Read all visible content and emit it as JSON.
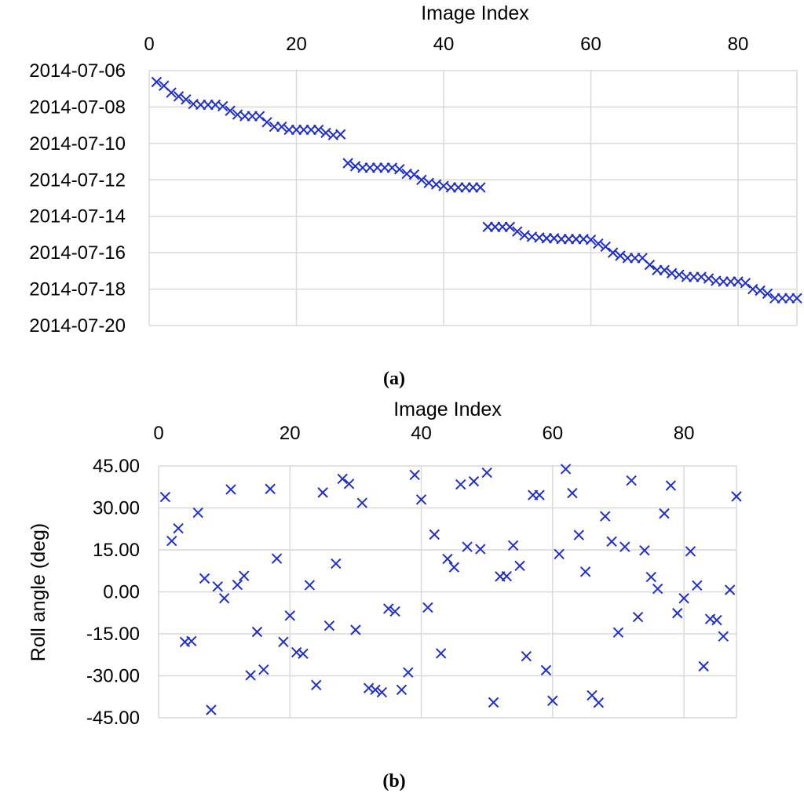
{
  "chart_data": [
    {
      "type": "scatter",
      "panel_label": "(a)",
      "title": "",
      "xlabel": "Image Index",
      "ylabel": "",
      "x_axis_position": "top",
      "xlim": [
        0,
        88
      ],
      "x_ticks": [
        0,
        20,
        40,
        60,
        80
      ],
      "y_axis": "date",
      "y_inverted": true,
      "ylim": [
        "2014-07-06",
        "2014-07-20"
      ],
      "y_ticks": [
        "2014-07-06",
        "2014-07-08",
        "2014-07-10",
        "2014-07-12",
        "2014-07-14",
        "2014-07-16",
        "2014-07-18",
        "2014-07-20"
      ],
      "grid": true,
      "marker": "x",
      "marker_color": "#1f2fcf",
      "legend": "none",
      "x": [
        1,
        2,
        3,
        4,
        5,
        6,
        7,
        8,
        9,
        10,
        11,
        12,
        13,
        14,
        15,
        16,
        17,
        18,
        19,
        20,
        21,
        22,
        23,
        24,
        25,
        26,
        27,
        28,
        29,
        30,
        31,
        32,
        33,
        34,
        35,
        36,
        37,
        38,
        39,
        40,
        41,
        42,
        43,
        44,
        45,
        46,
        47,
        48,
        49,
        50,
        51,
        52,
        53,
        54,
        55,
        56,
        57,
        58,
        59,
        60,
        61,
        62,
        63,
        64,
        65,
        66,
        67,
        68,
        69,
        70,
        71,
        72,
        73,
        74,
        75,
        76,
        77,
        78,
        79,
        80,
        81,
        82,
        83,
        84,
        85,
        86,
        87,
        88
      ],
      "y": [
        "2014-07-06 15:00",
        "2014-07-06 20:00",
        "2014-07-07 05:00",
        "2014-07-07 10:00",
        "2014-07-07 14:00",
        "2014-07-07 20:00",
        "2014-07-07 21:00",
        "2014-07-07 21:00",
        "2014-07-07 21:00",
        "2014-07-07 23:00",
        "2014-07-08 05:00",
        "2014-07-08 10:00",
        "2014-07-08 12:00",
        "2014-07-08 12:00",
        "2014-07-08 12:00",
        "2014-07-08 20:00",
        "2014-07-09 02:00",
        "2014-07-09 02:00",
        "2014-07-09 06:00",
        "2014-07-09 06:00",
        "2014-07-09 06:00",
        "2014-07-09 06:00",
        "2014-07-09 06:00",
        "2014-07-09 10:00",
        "2014-07-09 13:00",
        "2014-07-09 12:00",
        "2014-07-11 02:00",
        "2014-07-11 06:00",
        "2014-07-11 08:00",
        "2014-07-11 08:00",
        "2014-07-11 08:00",
        "2014-07-11 08:00",
        "2014-07-11 08:00",
        "2014-07-11 10:00",
        "2014-07-11 16:00",
        "2014-07-11 17:00",
        "2014-07-12 00:00",
        "2014-07-12 04:00",
        "2014-07-12 06:00",
        "2014-07-12 08:00",
        "2014-07-12 10:00",
        "2014-07-12 10:00",
        "2014-07-12 10:00",
        "2014-07-12 10:00",
        "2014-07-12 10:00",
        "2014-07-14 14:00",
        "2014-07-14 14:00",
        "2014-07-14 14:00",
        "2014-07-14 14:00",
        "2014-07-14 20:00",
        "2014-07-15 01:00",
        "2014-07-15 03:00",
        "2014-07-15 04:00",
        "2014-07-15 05:00",
        "2014-07-15 05:00",
        "2014-07-15 06:00",
        "2014-07-15 06:00",
        "2014-07-15 06:00",
        "2014-07-15 06:00",
        "2014-07-15 07:00",
        "2014-07-15 12:00",
        "2014-07-15 16:00",
        "2014-07-16 00:00",
        "2014-07-16 04:00",
        "2014-07-16 07:00",
        "2014-07-16 07:00",
        "2014-07-16 07:00",
        "2014-07-16 16:00",
        "2014-07-16 23:00",
        "2014-07-16 23:00",
        "2014-07-17 03:00",
        "2014-07-17 05:00",
        "2014-07-17 08:00",
        "2014-07-17 08:00",
        "2014-07-17 08:00",
        "2014-07-17 10:00",
        "2014-07-17 13:00",
        "2014-07-17 14:00",
        "2014-07-17 14:00",
        "2014-07-17 14:00",
        "2014-07-17 16:00",
        "2014-07-18 00:00",
        "2014-07-18 02:00",
        "2014-07-18 06:00",
        "2014-07-18 12:00",
        "2014-07-18 12:00",
        "2014-07-18 12:00",
        "2014-07-18 12:00"
      ]
    },
    {
      "type": "scatter",
      "panel_label": "(b)",
      "title": "",
      "xlabel": "Image Index",
      "ylabel": "Roll angle (deg)",
      "x_axis_position": "top",
      "xlim": [
        0,
        88
      ],
      "x_ticks": [
        0,
        20,
        40,
        60,
        80
      ],
      "ylim": [
        -45,
        45
      ],
      "y_ticks": [
        45,
        30,
        15,
        0,
        -15,
        -30,
        -45
      ],
      "y_tick_labels": [
        "45.00",
        "30.00",
        "15.00",
        "0.00",
        "-15.00",
        "-30.00",
        "-45.00"
      ],
      "grid": true,
      "marker": "x",
      "marker_color": "#1f2fcf",
      "legend": "none",
      "x": [
        1,
        2,
        3,
        4,
        5,
        6,
        7,
        8,
        9,
        10,
        11,
        12,
        13,
        14,
        15,
        16,
        17,
        18,
        19,
        20,
        21,
        22,
        23,
        24,
        25,
        26,
        27,
        28,
        29,
        30,
        31,
        32,
        33,
        34,
        35,
        36,
        37,
        38,
        39,
        40,
        41,
        42,
        43,
        44,
        45,
        46,
        47,
        48,
        49,
        50,
        51,
        52,
        53,
        54,
        55,
        56,
        57,
        58,
        59,
        60,
        61,
        62,
        63,
        64,
        65,
        66,
        67,
        68,
        69,
        70,
        71,
        72,
        73,
        74,
        75,
        76,
        77,
        78,
        79,
        80,
        81,
        82,
        83,
        84,
        85,
        86,
        87,
        88
      ],
      "y": [
        33.9,
        18.2,
        22.7,
        -17.9,
        -17.6,
        28.3,
        4.8,
        -42.2,
        1.9,
        -2.3,
        36.6,
        2.5,
        5.7,
        -29.8,
        -14.3,
        -27.8,
        36.8,
        11.9,
        -17.9,
        -8.5,
        -21.6,
        -22.1,
        2.4,
        -33.3,
        35.5,
        -12.1,
        10.1,
        40.4,
        38.6,
        -13.6,
        31.8,
        -34.4,
        -35.0,
        -35.9,
        -6.0,
        -7.0,
        -35.0,
        -28.8,
        41.8,
        33.0,
        -5.6,
        20.5,
        -22.0,
        11.8,
        8.8,
        38.4,
        16.1,
        39.5,
        15.3,
        42.6,
        -39.5,
        5.5,
        5.6,
        16.6,
        9.3,
        -23.0,
        34.6,
        34.6,
        -28.0,
        -38.9,
        13.5,
        43.9,
        35.3,
        20.3,
        7.2,
        -37.0,
        -39.6,
        27.0,
        18.0,
        -14.5,
        16.1,
        39.8,
        -9.0,
        14.8,
        5.3,
        1.1,
        28.0,
        38.0,
        -7.6,
        -2.3,
        14.5,
        2.3,
        -26.6,
        -9.7,
        -10.1,
        -15.9,
        0.7,
        34.1
      ]
    }
  ]
}
